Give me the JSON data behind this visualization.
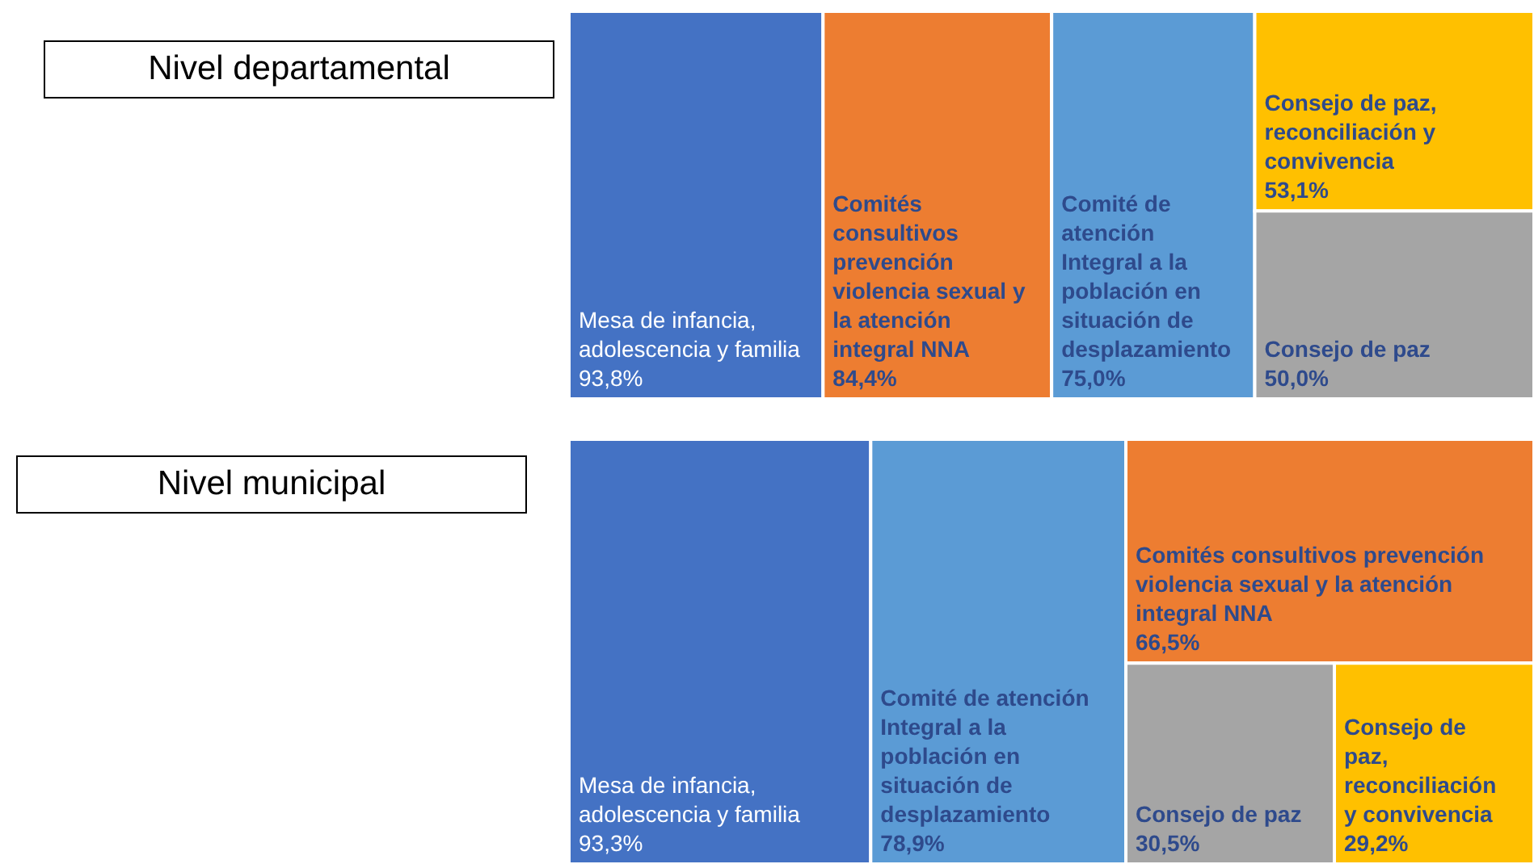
{
  "chart_data": [
    {
      "type": "other",
      "title": "Nivel departamental",
      "categories": [
        "Mesa de infancia, adolescencia y familia",
        "Comités consultivos prevención violencia sexual y la atención integral NNA",
        "Comité de atención Integral a la población en situación de desplazamiento",
        "Consejo de paz, reconciliación y convivencia",
        "Consejo de paz"
      ],
      "values": [
        93.8,
        84.4,
        75.0,
        53.1,
        50.0
      ],
      "value_labels": [
        "93,8%",
        "84,4%",
        "75,0%",
        "53,1%",
        "50,0%"
      ],
      "colors": [
        "#4472c4",
        "#ed7d31",
        "#5b9bd5",
        "#ffc000",
        "#a5a5a5"
      ]
    },
    {
      "type": "other",
      "title": "Nivel municipal",
      "categories": [
        "Mesa de infancia, adolescencia y familia",
        "Comité de atención Integral a la población en situación de desplazamiento",
        "Comités consultivos prevención violencia sexual y la atención integral NNA",
        "Consejo de paz",
        "Consejo de paz, reconciliación y convivencia"
      ],
      "values": [
        93.3,
        78.9,
        66.5,
        30.5,
        29.2
      ],
      "value_labels": [
        "93,3%",
        "78,9%",
        "66,5%",
        "30,5%",
        "29,2%"
      ],
      "colors": [
        "#4472c4",
        "#5b9bd5",
        "#ed7d31",
        "#a5a5a5",
        "#ffc000"
      ]
    }
  ]
}
